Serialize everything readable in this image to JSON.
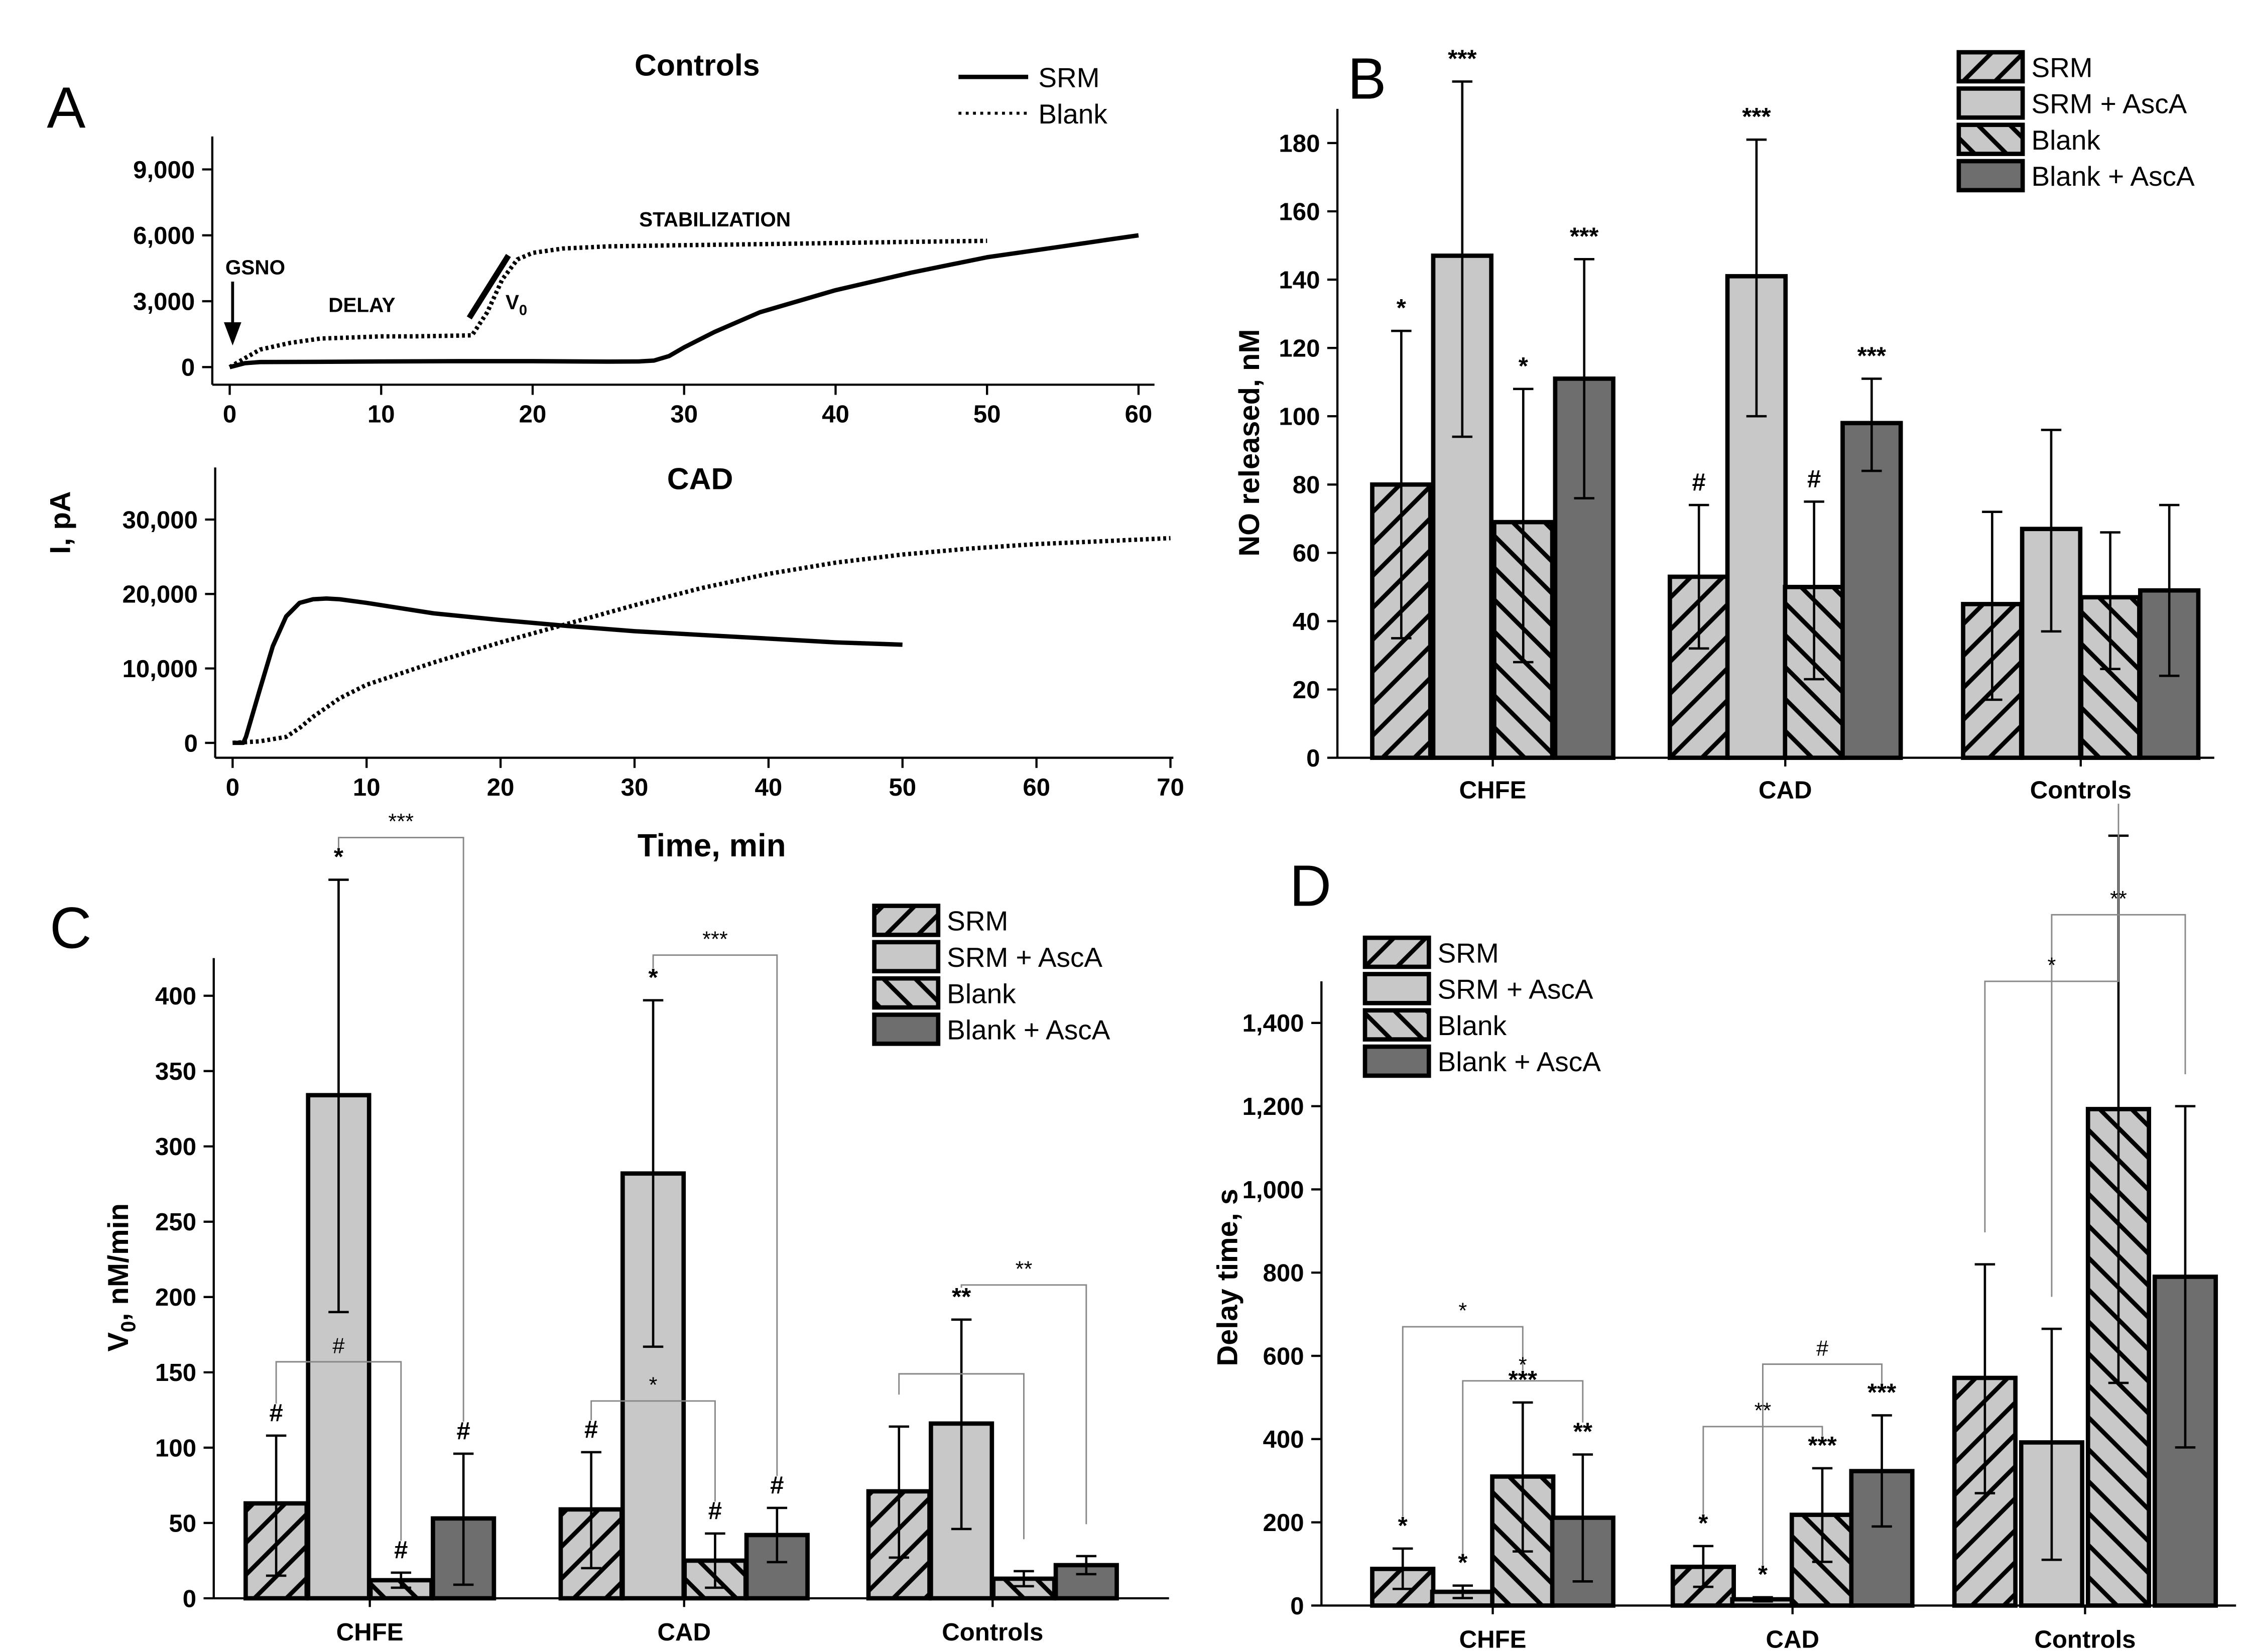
{
  "chart_data": [
    {
      "id": "A",
      "panel_label": "A",
      "type": "line",
      "shared_ylabel": "I, pA",
      "shared_xlabel": "Time, min",
      "legend": [
        "SRM",
        "Blank"
      ],
      "subplots": [
        {
          "title": "Controls",
          "xlim": [
            0,
            60
          ],
          "ylim": [
            -800,
            10500
          ],
          "xticks": [
            "0",
            "10",
            "20",
            "30",
            "40",
            "50",
            "60"
          ],
          "xtick_values": [
            0,
            10,
            20,
            30,
            40,
            50,
            60
          ],
          "yticks": [
            "0",
            "3,000",
            "6,000",
            "9,000"
          ],
          "ytick_values": [
            0,
            3000,
            6000,
            9000
          ],
          "annotations": {
            "gsno": "GSNO",
            "delay": "DELAY",
            "stabilization": "STABILIZATION",
            "v0": "V",
            "v0_sub": "0"
          },
          "series": [
            {
              "name": "SRM",
              "style": "solid",
              "x": [
                0,
                1,
                2,
                5,
                10,
                15,
                20,
                25,
                27,
                28,
                29,
                30,
                32,
                35,
                40,
                45,
                50,
                55,
                58,
                60
              ],
              "y": [
                0,
                180,
                230,
                240,
                260,
                270,
                270,
                250,
                260,
                300,
                500,
                900,
                1600,
                2500,
                3500,
                4300,
                5000,
                5500,
                5800,
                6000
              ]
            },
            {
              "name": "Blank",
              "style": "dotted",
              "x": [
                0,
                1,
                2,
                4,
                6,
                8,
                10,
                12,
                14,
                16,
                17,
                18,
                19,
                20,
                22,
                25,
                30,
                35,
                40,
                45,
                50
              ],
              "y": [
                0,
                400,
                800,
                1100,
                1300,
                1350,
                1400,
                1400,
                1420,
                1450,
                2500,
                4000,
                4900,
                5200,
                5400,
                5500,
                5550,
                5600,
                5650,
                5700,
                5750
              ]
            }
          ]
        },
        {
          "title": "CAD",
          "xlim": [
            0,
            70
          ],
          "ylim": [
            -2000,
            37000
          ],
          "xticks": [
            "0",
            "10",
            "20",
            "30",
            "40",
            "50",
            "60",
            "70"
          ],
          "xtick_values": [
            0,
            10,
            20,
            30,
            40,
            50,
            60,
            70
          ],
          "yticks": [
            "0",
            "10,000",
            "20,000",
            "30,000"
          ],
          "ytick_values": [
            0,
            10000,
            20000,
            30000
          ],
          "series": [
            {
              "name": "SRM",
              "style": "solid",
              "x": [
                0,
                0.8,
                1,
                2,
                3,
                4,
                5,
                6,
                7,
                8,
                10,
                15,
                20,
                25,
                30,
                35,
                40,
                45,
                50
              ],
              "y": [
                0,
                0,
                800,
                7000,
                13000,
                17000,
                18800,
                19300,
                19400,
                19300,
                18800,
                17400,
                16500,
                15700,
                15000,
                14500,
                14000,
                13500,
                13200
              ]
            },
            {
              "name": "Blank",
              "style": "dotted",
              "x": [
                0,
                2,
                4,
                5,
                6,
                8,
                10,
                15,
                20,
                25,
                30,
                35,
                40,
                45,
                50,
                55,
                60,
                65,
                70
              ],
              "y": [
                0,
                200,
                800,
                2000,
                3500,
                6000,
                7800,
                10800,
                13500,
                16000,
                18500,
                20800,
                22700,
                24200,
                25300,
                26100,
                26700,
                27100,
                27500
              ]
            }
          ]
        }
      ]
    },
    {
      "id": "B",
      "panel_label": "B",
      "type": "bar",
      "ylabel": "NO released, nM",
      "ylim": [
        0,
        190
      ],
      "yticks": [
        "0",
        "20",
        "40",
        "60",
        "80",
        "100",
        "120",
        "140",
        "160",
        "180"
      ],
      "ytick_values": [
        0,
        20,
        40,
        60,
        80,
        100,
        120,
        140,
        160,
        180
      ],
      "categories": [
        "CHFE",
        "CAD",
        "Controls"
      ],
      "legend": [
        "SRM",
        "SRM + AscA",
        "Blank",
        "Blank + AscA"
      ],
      "series": [
        {
          "name": "SRM",
          "values": [
            80,
            53,
            45
          ],
          "err_low": [
            35,
            32,
            17
          ],
          "err_high": [
            125,
            74,
            72
          ]
        },
        {
          "name": "SRM + AscA",
          "values": [
            147,
            141,
            67
          ],
          "err_low": [
            94,
            100,
            37
          ],
          "err_high": [
            198,
            181,
            96
          ]
        },
        {
          "name": "Blank",
          "values": [
            69,
            50,
            47
          ],
          "err_low": [
            28,
            23,
            26
          ],
          "err_high": [
            108,
            75,
            66
          ]
        },
        {
          "name": "Blank + AscA",
          "values": [
            111,
            98,
            49
          ],
          "err_low": [
            76,
            84,
            24
          ],
          "err_high": [
            146,
            111,
            74
          ]
        }
      ],
      "significance": [
        {
          "category": 0,
          "series": 0,
          "text": "*"
        },
        {
          "category": 0,
          "series": 1,
          "text": "***"
        },
        {
          "category": 0,
          "series": 2,
          "text": "*"
        },
        {
          "category": 0,
          "series": 3,
          "text": "***"
        },
        {
          "category": 1,
          "series": 0,
          "text": "#"
        },
        {
          "category": 1,
          "series": 1,
          "text": "***"
        },
        {
          "category": 1,
          "series": 2,
          "text": "#"
        },
        {
          "category": 1,
          "series": 3,
          "text": "***"
        }
      ]
    },
    {
      "id": "C",
      "panel_label": "C",
      "type": "bar",
      "ylabel": "V",
      "ylabel_sub": "0",
      "ylabel_rest": ", nM/min",
      "ylim": [
        0,
        425
      ],
      "yticks": [
        "0",
        "50",
        "100",
        "150",
        "200",
        "250",
        "300",
        "350",
        "400"
      ],
      "ytick_values": [
        0,
        50,
        100,
        150,
        200,
        250,
        300,
        350,
        400
      ],
      "categories": [
        "CHFE",
        "CAD",
        "Controls"
      ],
      "legend": [
        "SRM",
        "SRM  + AscA",
        "Blank",
        "Blank + AscA"
      ],
      "series": [
        {
          "name": "SRM",
          "values": [
            63,
            59,
            71
          ],
          "err_low": [
            15,
            20,
            27
          ],
          "err_high": [
            108,
            97,
            114
          ]
        },
        {
          "name": "SRM  + AscA",
          "values": [
            334,
            282,
            116
          ],
          "err_low": [
            190,
            167,
            46
          ],
          "err_high": [
            477,
            397,
            185
          ]
        },
        {
          "name": "Blank",
          "values": [
            12,
            25,
            13
          ],
          "err_low": [
            7,
            7,
            8
          ],
          "err_high": [
            17,
            43,
            18
          ]
        },
        {
          "name": "Blank + AscA",
          "values": [
            53,
            42,
            22
          ],
          "err_low": [
            9,
            24,
            16
          ],
          "err_high": [
            96,
            60,
            28
          ]
        }
      ],
      "significance": [
        {
          "category": 0,
          "series": 0,
          "text": "#"
        },
        {
          "category": 0,
          "series": 1,
          "text": "*"
        },
        {
          "category": 0,
          "series": 2,
          "text": "#"
        },
        {
          "category": 0,
          "series": 3,
          "text": "#"
        },
        {
          "category": 1,
          "series": 0,
          "text": "#"
        },
        {
          "category": 1,
          "series": 1,
          "text": "*"
        },
        {
          "category": 1,
          "series": 2,
          "text": "#"
        },
        {
          "category": 1,
          "series": 3,
          "text": "#"
        },
        {
          "category": 2,
          "series": 1,
          "text": "**"
        }
      ],
      "brackets": [
        {
          "category": 0,
          "from_series": 1,
          "to_series": 3,
          "value": 505,
          "text": "***"
        },
        {
          "category": 0,
          "from_series": 0,
          "to_series": 2,
          "value": 157,
          "text": "#"
        },
        {
          "category": 1,
          "from_series": 1,
          "to_series": 3,
          "value": 427,
          "text": "***"
        },
        {
          "category": 1,
          "from_series": 0,
          "to_series": 2,
          "value": 131,
          "text": "*"
        },
        {
          "category": 2,
          "from_series": 1,
          "to_series": 3,
          "value": 208,
          "text": "**"
        },
        {
          "category": 2,
          "from_series": 0,
          "to_series": 2,
          "value": 149,
          "text": ""
        }
      ]
    },
    {
      "id": "D",
      "panel_label": "D",
      "type": "bar",
      "ylabel": "Delay time, s",
      "ylim": [
        0,
        1500
      ],
      "yticks": [
        "0",
        "200",
        "400",
        "600",
        "800",
        "1,000",
        "1,200",
        "1,400"
      ],
      "ytick_values": [
        0,
        200,
        400,
        600,
        800,
        1000,
        1200,
        1400
      ],
      "categories": [
        "CHFE",
        "CAD",
        "Controls"
      ],
      "legend": [
        "SRM",
        "SRM + AscA",
        "Blank",
        "Blank + AscA"
      ],
      "series": [
        {
          "name": "SRM",
          "values": [
            88,
            93,
            547
          ],
          "err_low": [
            40,
            45,
            270
          ],
          "err_high": [
            137,
            143,
            820
          ]
        },
        {
          "name": "SRM + AscA",
          "values": [
            33,
            15,
            392
          ],
          "err_low": [
            18,
            10,
            110
          ],
          "err_high": [
            48,
            20,
            665
          ]
        },
        {
          "name": "Blank",
          "values": [
            310,
            218,
            1193
          ],
          "err_low": [
            130,
            105,
            535
          ],
          "err_high": [
            488,
            330,
            1850
          ]
        },
        {
          "name": "Blank + AscA",
          "values": [
            211,
            323,
            790
          ],
          "err_low": [
            58,
            190,
            380
          ],
          "err_high": [
            363,
            457,
            1200
          ]
        }
      ],
      "significance": [
        {
          "category": 0,
          "series": 0,
          "text": "*"
        },
        {
          "category": 0,
          "series": 1,
          "text": "*"
        },
        {
          "category": 0,
          "series": 2,
          "text": "***"
        },
        {
          "category": 0,
          "series": 3,
          "text": "**"
        },
        {
          "category": 1,
          "series": 0,
          "text": "*"
        },
        {
          "category": 1,
          "series": 1,
          "text": "*"
        },
        {
          "category": 1,
          "series": 2,
          "text": "***"
        },
        {
          "category": 1,
          "series": 3,
          "text": "***"
        }
      ],
      "brackets": [
        {
          "category": 0,
          "from_series": 0,
          "to_series": 2,
          "value": 670,
          "text": "*"
        },
        {
          "category": 0,
          "from_series": 1,
          "to_series": 3,
          "value": 540,
          "text": "*"
        },
        {
          "category": 1,
          "from_series": 1,
          "to_series": 3,
          "value": 580,
          "text": "#"
        },
        {
          "category": 1,
          "from_series": 0,
          "to_series": 2,
          "value": 430,
          "text": "**"
        },
        {
          "category": 2,
          "from_series": 1,
          "to_series": 3,
          "value": 1660,
          "text": "**"
        },
        {
          "category": 2,
          "from_series": 0,
          "to_series": 2,
          "value": 1500,
          "text": "*"
        }
      ]
    }
  ]
}
